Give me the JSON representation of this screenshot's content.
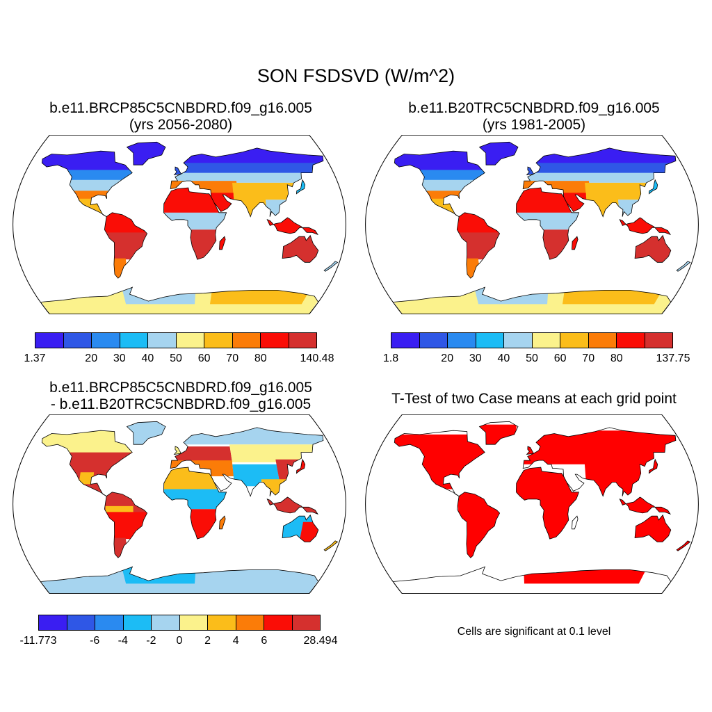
{
  "figure": {
    "title": "SON FSDSVD (W/m^2)",
    "footnote": "Cells are significant at 0.1 level"
  },
  "palette": [
    "#3a1ef2",
    "#2f57e6",
    "#2a8af0",
    "#1cbcf5",
    "#a6d4ef",
    "#fbf28c",
    "#fbbd1a",
    "#fb7c08",
    "#fa0d06",
    "#d5302e"
  ],
  "panels": [
    {
      "id": "p1",
      "title_line1": "b.e11.BRCP85C5CNBDRD.f09_g16.005",
      "title_line2": "(yrs 2056-2080)",
      "ticks": [
        {
          "label": "1.37",
          "pos": 0.0
        },
        {
          "label": "20",
          "pos": 0.2
        },
        {
          "label": "30",
          "pos": 0.3
        },
        {
          "label": "40",
          "pos": 0.4
        },
        {
          "label": "50",
          "pos": 0.5
        },
        {
          "label": "60",
          "pos": 0.6
        },
        {
          "label": "70",
          "pos": 0.7
        },
        {
          "label": "80",
          "pos": 0.8
        },
        {
          "label": "140.48",
          "pos": 1.0
        }
      ]
    },
    {
      "id": "p2",
      "title_line1": "b.e11.B20TRC5CNBDRD.f09_g16.005",
      "title_line2": "(yrs 1981-2005)",
      "ticks": [
        {
          "label": "1.8",
          "pos": 0.0
        },
        {
          "label": "20",
          "pos": 0.2
        },
        {
          "label": "30",
          "pos": 0.3
        },
        {
          "label": "40",
          "pos": 0.4
        },
        {
          "label": "50",
          "pos": 0.5
        },
        {
          "label": "60",
          "pos": 0.6
        },
        {
          "label": "70",
          "pos": 0.7
        },
        {
          "label": "80",
          "pos": 0.8
        },
        {
          "label": "137.75",
          "pos": 1.0
        }
      ]
    },
    {
      "id": "p3",
      "title_line1": "b.e11.BRCP85C5CNBDRD.f09_g16.005",
      "title_line2": "- b.e11.B20TRC5CNBDRD.f09_g16.005",
      "ticks": [
        {
          "label": "-11.773",
          "pos": 0.0
        },
        {
          "label": "-6",
          "pos": 0.2
        },
        {
          "label": "-4",
          "pos": 0.3
        },
        {
          "label": "-2",
          "pos": 0.4
        },
        {
          "label": "0",
          "pos": 0.5
        },
        {
          "label": "2",
          "pos": 0.6
        },
        {
          "label": "4",
          "pos": 0.7
        },
        {
          "label": "6",
          "pos": 0.8
        },
        {
          "label": "28.494",
          "pos": 1.0
        }
      ]
    },
    {
      "id": "p4",
      "title_line1": "T-Test of two Case means at each grid point",
      "significance_color": "#ff0000"
    }
  ]
}
